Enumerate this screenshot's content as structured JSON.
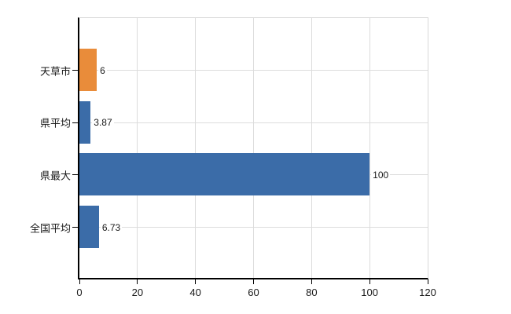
{
  "chart_data": {
    "type": "bar",
    "orientation": "horizontal",
    "title": "",
    "xlabel": "",
    "ylabel": "",
    "categories": [
      "天草市",
      "県平均",
      "県最大",
      "全国平均"
    ],
    "values": [
      6,
      3.87,
      100,
      6.73
    ],
    "value_labels": [
      "6",
      "3.87",
      "100",
      "6.73"
    ],
    "bar_colors": [
      "#e98c3a",
      "#3b6ca8",
      "#3b6ca8",
      "#3b6ca8"
    ],
    "xlim": [
      0,
      120
    ],
    "xticks": [
      0,
      20,
      40,
      60,
      80,
      100,
      120
    ],
    "grid": true,
    "legend": false,
    "colors": {
      "highlight_bar": "#e98c3a",
      "default_bar": "#3b6ca8",
      "gridline": "#dcdcdc",
      "axis": "#000000",
      "frame": "#d9d9d9",
      "text": "#1a1a1a",
      "background": "#ffffff"
    }
  }
}
